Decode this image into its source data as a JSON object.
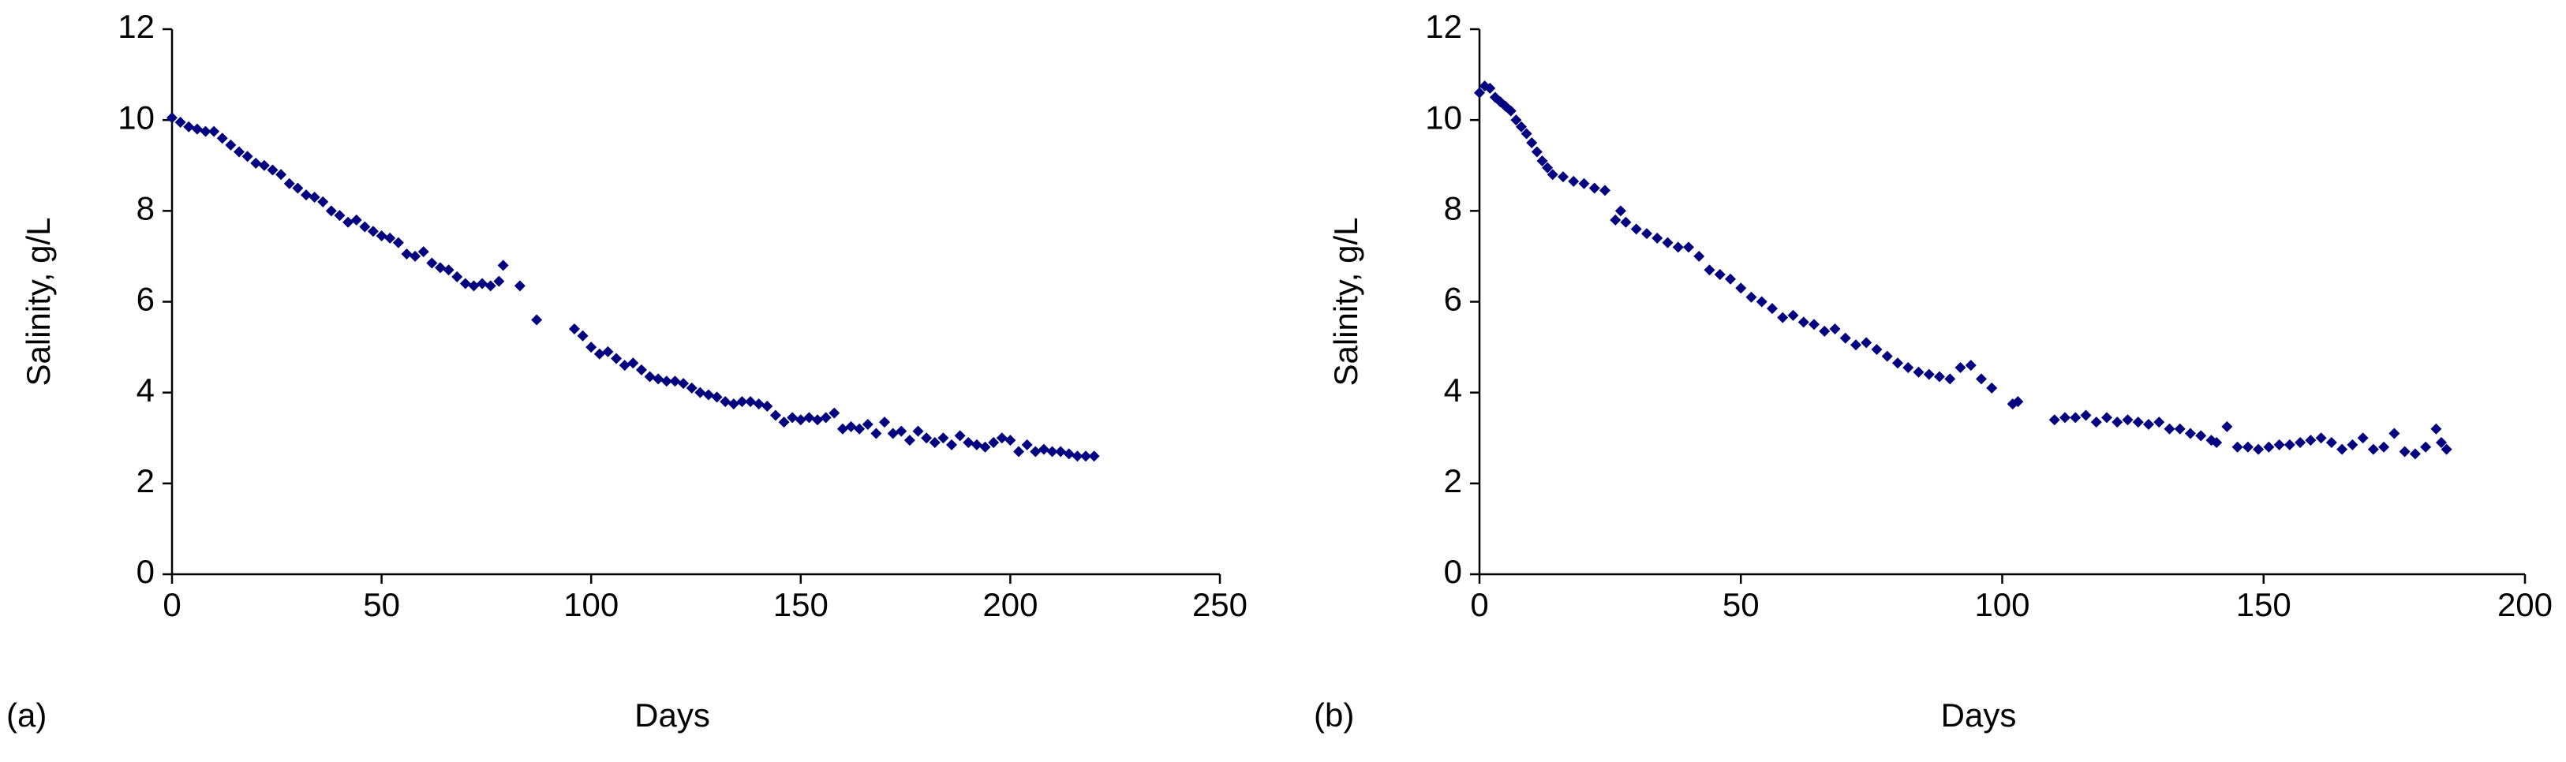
{
  "chart_data": [
    {
      "type": "scatter",
      "annotation": "(a)",
      "xlabel": "Days",
      "ylabel": "Salinity, g/L",
      "color": "#000080",
      "xlim": [
        0,
        250
      ],
      "xticks": [
        0,
        50,
        100,
        150,
        200,
        250
      ],
      "ylim": [
        0,
        12
      ],
      "yticks": [
        0,
        2,
        4,
        6,
        8,
        10,
        12
      ],
      "x": [
        0,
        2,
        4,
        6,
        8,
        10,
        12,
        14,
        16,
        18,
        20,
        22,
        24,
        26,
        28,
        30,
        32,
        34,
        36,
        38,
        40,
        42,
        44,
        46,
        48,
        50,
        52,
        54,
        56,
        58,
        60,
        62,
        64,
        66,
        68,
        70,
        72,
        74,
        76,
        78,
        79,
        83,
        87,
        96,
        98,
        100,
        102,
        104,
        106,
        108,
        110,
        112,
        114,
        116,
        118,
        120,
        122,
        124,
        126,
        128,
        130,
        132,
        134,
        136,
        138,
        140,
        142,
        144,
        146,
        148,
        150,
        152,
        154,
        156,
        158,
        160,
        162,
        164,
        166,
        168,
        170,
        172,
        174,
        176,
        178,
        180,
        182,
        184,
        186,
        188,
        190,
        192,
        194,
        196,
        198,
        200,
        202,
        204,
        206,
        208,
        210,
        212,
        214,
        216,
        218,
        220
      ],
      "values": [
        10.05,
        9.95,
        9.85,
        9.8,
        9.75,
        9.75,
        9.6,
        9.45,
        9.3,
        9.2,
        9.05,
        9.0,
        8.9,
        8.8,
        8.6,
        8.5,
        8.35,
        8.3,
        8.2,
        8.0,
        7.9,
        7.75,
        7.8,
        7.65,
        7.55,
        7.45,
        7.4,
        7.3,
        7.05,
        7.0,
        7.1,
        6.85,
        6.75,
        6.7,
        6.55,
        6.4,
        6.35,
        6.4,
        6.35,
        6.45,
        6.8,
        6.35,
        5.6,
        5.4,
        5.25,
        5.0,
        4.85,
        4.9,
        4.75,
        4.6,
        4.65,
        4.5,
        4.35,
        4.3,
        4.25,
        4.25,
        4.2,
        4.1,
        4.0,
        3.95,
        3.9,
        3.8,
        3.75,
        3.8,
        3.8,
        3.75,
        3.7,
        3.5,
        3.35,
        3.45,
        3.4,
        3.45,
        3.4,
        3.45,
        3.55,
        3.2,
        3.25,
        3.2,
        3.3,
        3.1,
        3.35,
        3.1,
        3.15,
        2.95,
        3.15,
        3.0,
        2.9,
        3.0,
        2.85,
        3.05,
        2.9,
        2.85,
        2.8,
        2.9,
        3.0,
        2.95,
        2.7,
        2.85,
        2.7,
        2.75,
        2.7,
        2.7,
        2.65,
        2.6,
        2.6,
        2.6
      ]
    },
    {
      "type": "scatter",
      "annotation": "(b)",
      "xlabel": "Days",
      "ylabel": "Salinity, g/L",
      "color": "#000080",
      "xlim": [
        0,
        200
      ],
      "xticks": [
        0,
        50,
        100,
        150,
        200
      ],
      "ylim": [
        0,
        12
      ],
      "yticks": [
        0,
        2,
        4,
        6,
        8,
        10,
        12
      ],
      "x": [
        0,
        1,
        2,
        3,
        4,
        5,
        6,
        7,
        8,
        9,
        10,
        11,
        12,
        13,
        14,
        16,
        18,
        20,
        22,
        24,
        26,
        27,
        28,
        30,
        32,
        34,
        36,
        38,
        40,
        42,
        44,
        46,
        48,
        50,
        52,
        54,
        56,
        58,
        60,
        62,
        64,
        66,
        68,
        70,
        72,
        74,
        76,
        78,
        80,
        82,
        84,
        86,
        88,
        90,
        92,
        94,
        96,
        98,
        102,
        103,
        110,
        112,
        114,
        116,
        118,
        120,
        122,
        124,
        126,
        128,
        130,
        132,
        134,
        136,
        138,
        140,
        141,
        143,
        145,
        147,
        149,
        151,
        153,
        155,
        157,
        159,
        161,
        163,
        165,
        167,
        169,
        171,
        173,
        175,
        177,
        179,
        181,
        183,
        184,
        185
      ],
      "values": [
        10.6,
        10.75,
        10.7,
        10.5,
        10.4,
        10.3,
        10.2,
        10.0,
        9.85,
        9.7,
        9.5,
        9.3,
        9.1,
        8.95,
        8.8,
        8.75,
        8.65,
        8.6,
        8.5,
        8.45,
        7.8,
        8.0,
        7.75,
        7.6,
        7.5,
        7.4,
        7.3,
        7.2,
        7.2,
        7.0,
        6.7,
        6.6,
        6.5,
        6.3,
        6.1,
        6.0,
        5.85,
        5.65,
        5.7,
        5.55,
        5.5,
        5.35,
        5.4,
        5.2,
        5.05,
        5.1,
        4.95,
        4.8,
        4.65,
        4.55,
        4.45,
        4.4,
        4.35,
        4.3,
        4.55,
        4.6,
        4.3,
        4.1,
        3.75,
        3.8,
        3.4,
        3.45,
        3.45,
        3.5,
        3.35,
        3.45,
        3.35,
        3.4,
        3.35,
        3.3,
        3.35,
        3.2,
        3.2,
        3.1,
        3.05,
        2.95,
        2.9,
        3.25,
        2.8,
        2.8,
        2.75,
        2.8,
        2.85,
        2.85,
        2.9,
        2.95,
        3.0,
        2.9,
        2.75,
        2.85,
        3.0,
        2.75,
        2.8,
        3.1,
        2.7,
        2.65,
        2.8,
        3.2,
        2.9,
        2.75
      ]
    }
  ]
}
